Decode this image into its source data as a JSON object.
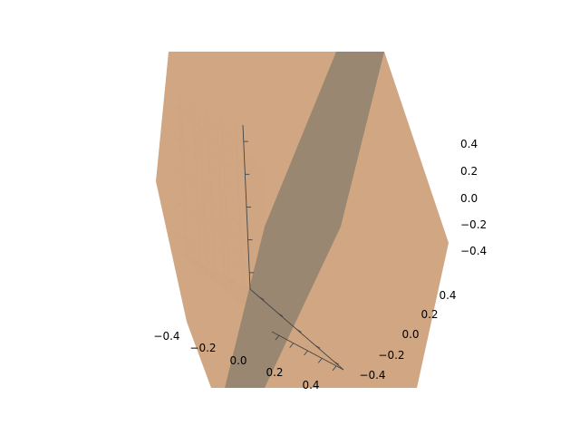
{
  "chart_data": {
    "type": "surface3d",
    "title": "",
    "xlabel": "",
    "ylabel": "",
    "zlabel": "",
    "xlim": [
      -0.5,
      0.5
    ],
    "ylim": [
      -0.5,
      0.5
    ],
    "zlim": [
      -0.5,
      0.5
    ],
    "x_ticks": [
      -0.4,
      -0.2,
      0.0,
      0.2,
      0.4
    ],
    "y_ticks": [
      -0.4,
      -0.2,
      0.0,
      0.2,
      0.4
    ],
    "z_ticks": [
      -0.4,
      -0.2,
      0.0,
      0.2,
      0.4
    ],
    "x_tick_labels": [
      "−0.4",
      "−0.2",
      "0.0",
      "0.2",
      "0.4"
    ],
    "y_tick_labels": [
      "−0.4",
      "−0.2",
      "0.0",
      "0.2",
      "0.4"
    ],
    "z_tick_labels": [
      "−0.4",
      "−0.2",
      "0.0",
      "0.2",
      "0.4"
    ],
    "grid": true,
    "surfaces": [
      {
        "role": "plane",
        "color": "#cfa27c",
        "opacity": 0.95
      },
      {
        "role": "band",
        "color": "#978570",
        "opacity": 0.95
      }
    ],
    "colors": {
      "pane_light": "#f2f2f2",
      "pane_mid": "#e9e9e9",
      "pane_dark": "#dedede",
      "grid": "#c8c8c8"
    }
  }
}
